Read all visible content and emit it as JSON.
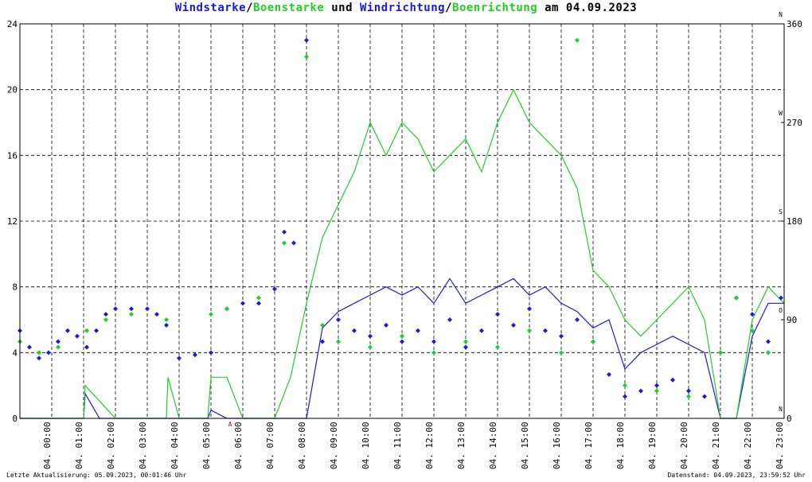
{
  "title": {
    "part1": "Windstarke",
    "sep1": "/",
    "part2": "Boenstarke",
    "mid": " und ",
    "part3": "Windrichtung",
    "sep2": "/",
    "part4": "Boenrichtung",
    "end": " am 04.09.2023"
  },
  "footer": {
    "left": "Letzte Aktualisierung: 05.09.2023, 00:01:46 Uhr",
    "right": "Datenstand: 04.09.2023, 23:59:52 Uhr"
  },
  "colors": {
    "windstarke": "#1a1adc",
    "boenstarke": "#22d022",
    "windrichtung": "#1a1adc",
    "boenrichtung": "#22d022",
    "marker": "#cc0000"
  },
  "chart_data": {
    "type": "line",
    "x_unit": "hours",
    "xlim": [
      0,
      24
    ],
    "ylim_left": [
      0,
      24
    ],
    "ylim_right": [
      0,
      360
    ],
    "left_ticks": [
      "0",
      "4",
      "8",
      "12",
      "16",
      "20",
      "24"
    ],
    "right_ticks": [
      "0",
      "90",
      "180",
      "270",
      "360"
    ],
    "direction_labels": [
      "N",
      "O",
      "S",
      "W",
      "N"
    ],
    "x_tick_labels": [
      "04. 00:00",
      "04. 01:00",
      "04. 02:00",
      "04. 03:00",
      "04. 04:00",
      "04. 05:00",
      "04. 06:00",
      "04. 07:00",
      "04. 08:00",
      "04. 09:00",
      "04. 10:00",
      "04. 11:00",
      "04. 12:00",
      "04. 13:00",
      "04. 14:00",
      "04. 15:00",
      "04. 16:00",
      "04. 17:00",
      "04. 18:00",
      "04. 19:00",
      "04. 20:00",
      "04. 21:00",
      "04. 22:00",
      "04. 23:00"
    ],
    "marker_label": "A",
    "marker_x": 6.6,
    "grid": true,
    "series": [
      {
        "key": "windstarke",
        "x": [
          0,
          0.5,
          1,
          1.5,
          2,
          2.05,
          2.5,
          3,
          3.5,
          4,
          4.5,
          4.6,
          5,
          5.5,
          5.9,
          6.0,
          6.5,
          7,
          7.5,
          8,
          8.5,
          9,
          9.5,
          10,
          10.5,
          11,
          11.5,
          12,
          12.5,
          13,
          13.5,
          14,
          14.5,
          15,
          15.5,
          16,
          16.5,
          17,
          17.5,
          18,
          18.5,
          19,
          19.5,
          20,
          20.5,
          21,
          21.5,
          22,
          22.5,
          23,
          23.5,
          24
        ],
        "values": [
          0,
          0,
          0,
          0,
          0,
          1.5,
          0,
          0,
          0,
          0,
          0,
          0,
          0,
          0,
          0,
          0.5,
          0,
          0,
          0,
          0,
          0,
          0,
          5.5,
          6.5,
          7,
          7.5,
          8,
          7.5,
          8,
          7,
          8.5,
          7,
          7.5,
          8,
          8.5,
          7.5,
          8,
          7,
          6.5,
          5.5,
          6,
          3,
          4,
          4.5,
          5,
          4.5,
          4,
          0,
          0,
          5,
          7,
          7
        ]
      },
      {
        "key": "boenstarke",
        "x": [
          0,
          1,
          2,
          2.05,
          3,
          4,
          4.6,
          4.65,
          5,
          5.9,
          6.0,
          6.5,
          7,
          8,
          8.5,
          9,
          9.5,
          10,
          10.5,
          11,
          11.5,
          12,
          12.5,
          13,
          13.5,
          14,
          14.5,
          15,
          15.5,
          16,
          16.5,
          17,
          17.5,
          18,
          18.5,
          19,
          19.5,
          20,
          20.5,
          21,
          21.5,
          22,
          22.5,
          23,
          23.5,
          24
        ],
        "values": [
          0,
          0,
          0,
          2,
          0,
          0,
          0,
          2.5,
          0,
          0,
          2.5,
          2.5,
          0,
          0,
          2.5,
          7,
          11,
          13,
          15,
          18,
          16,
          18,
          17,
          15,
          16,
          17,
          15,
          18,
          20,
          18,
          17,
          16,
          14,
          9,
          8,
          6,
          5,
          6,
          7,
          8,
          6,
          0,
          0,
          6,
          8,
          7
        ]
      },
      {
        "key": "windrichtung",
        "x": [
          0,
          0.3,
          0.6,
          0.9,
          1.2,
          1.5,
          1.8,
          2.1,
          2.4,
          2.7,
          3,
          3.5,
          4,
          4.3,
          4.6,
          5,
          5.5,
          6,
          6.5,
          7,
          7.5,
          8,
          8.3,
          8.6,
          9,
          9.5,
          10,
          10.5,
          11,
          11.5,
          12,
          12.5,
          13,
          13.5,
          14,
          14.5,
          15,
          15.5,
          16,
          16.5,
          17,
          17.5,
          18,
          18.5,
          19,
          19.5,
          20,
          20.5,
          21,
          21.5,
          22,
          22.5,
          23,
          23.5,
          23.9
        ],
        "values": [
          80,
          65,
          55,
          60,
          70,
          80,
          75,
          65,
          80,
          95,
          100,
          100,
          100,
          95,
          85,
          55,
          58,
          60,
          100,
          105,
          105,
          118,
          170,
          160,
          345,
          70,
          90,
          80,
          75,
          85,
          70,
          80,
          70,
          90,
          65,
          80,
          95,
          85,
          100,
          80,
          75,
          90,
          70,
          40,
          20,
          25,
          30,
          35,
          25,
          20,
          60,
          110,
          95,
          70,
          110
        ]
      },
      {
        "key": "boenrichtung",
        "x": [
          0,
          0.6,
          1.2,
          2.1,
          2.7,
          3.5,
          4.6,
          6,
          6.5,
          7.5,
          8.3,
          9,
          9.5,
          10,
          11,
          12,
          13,
          14,
          15,
          16,
          17,
          17.5,
          18,
          19,
          20,
          21,
          22,
          22.5,
          23,
          23.5
        ],
        "values": [
          70,
          60,
          65,
          80,
          90,
          95,
          90,
          95,
          100,
          110,
          160,
          330,
          85,
          70,
          65,
          75,
          60,
          70,
          65,
          80,
          60,
          345,
          70,
          30,
          25,
          20,
          60,
          110,
          80,
          60
        ]
      }
    ]
  }
}
